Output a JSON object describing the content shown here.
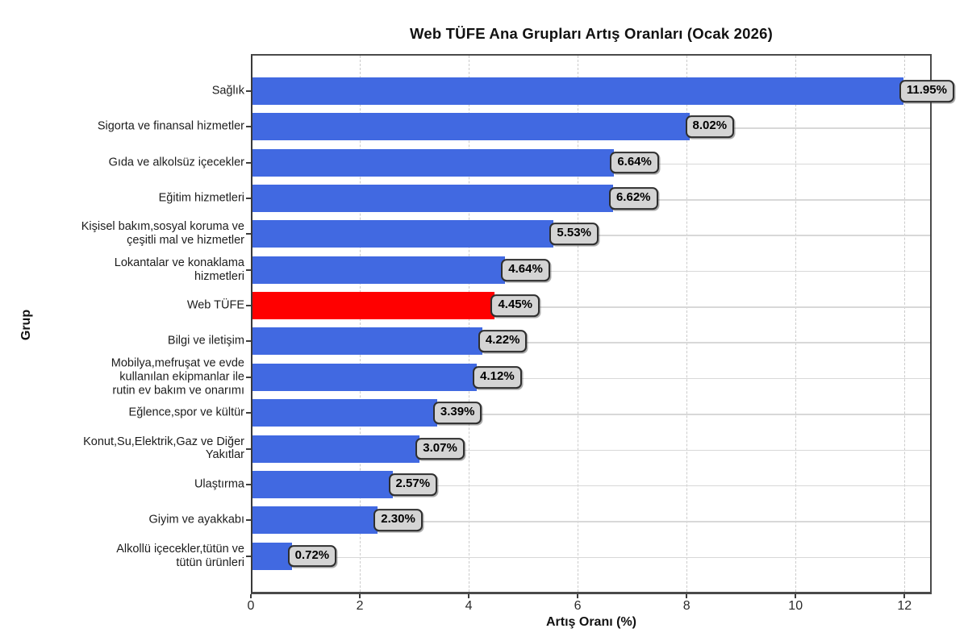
{
  "chart_data": {
    "type": "bar",
    "orientation": "horizontal",
    "title": "Web TÜFE Ana Grupları Artış Oranları (Ocak 2026)",
    "xlabel": "Artış Oranı (%)",
    "ylabel": "Grup",
    "xlim": [
      0,
      12.5
    ],
    "xticks": [
      0,
      2,
      4,
      6,
      8,
      10,
      12
    ],
    "grid": true,
    "legend": "none",
    "categories": [
      "Sağlık",
      "Sigorta ve finansal hizmetler",
      "Gıda ve alkolsüz içecekler",
      "Eğitim hizmetleri",
      "Kişisel bakım,sosyal koruma ve\nçeşitli mal ve hizmetler",
      "Lokantalar ve konaklama\nhizmetleri",
      "Web TÜFE",
      "Bilgi ve iletişim",
      "Mobilya,mefruşat ve evde\nkullanılan ekipmanlar ile\nrutin ev bakım ve onarımı",
      "Eğlence,spor ve kültür",
      "Konut,Su,Elektrik,Gaz ve Diğer\nYakıtlar",
      "Ulaştırma",
      "Giyim ve ayakkabı",
      "Alkollü içecekler,tütün ve\ntütün ürünleri"
    ],
    "values": [
      11.95,
      8.02,
      6.64,
      6.62,
      5.53,
      4.64,
      4.45,
      4.22,
      4.12,
      3.39,
      3.07,
      2.57,
      2.3,
      0.72
    ],
    "value_labels": [
      "11.95%",
      "8.02%",
      "6.64%",
      "6.62%",
      "5.53%",
      "4.64%",
      "4.45%",
      "4.22%",
      "4.12%",
      "3.39%",
      "3.07%",
      "2.57%",
      "2.30%",
      "0.72%"
    ],
    "highlight_category": "Web TÜFE",
    "highlight_index": 6,
    "colors": {
      "bar_default": "#4169E1",
      "bar_highlight": "#FF0000",
      "value_box_bg": "#d4d4d4",
      "value_box_border": "#2e2e2e",
      "gridline": "#cbcbcb"
    }
  }
}
